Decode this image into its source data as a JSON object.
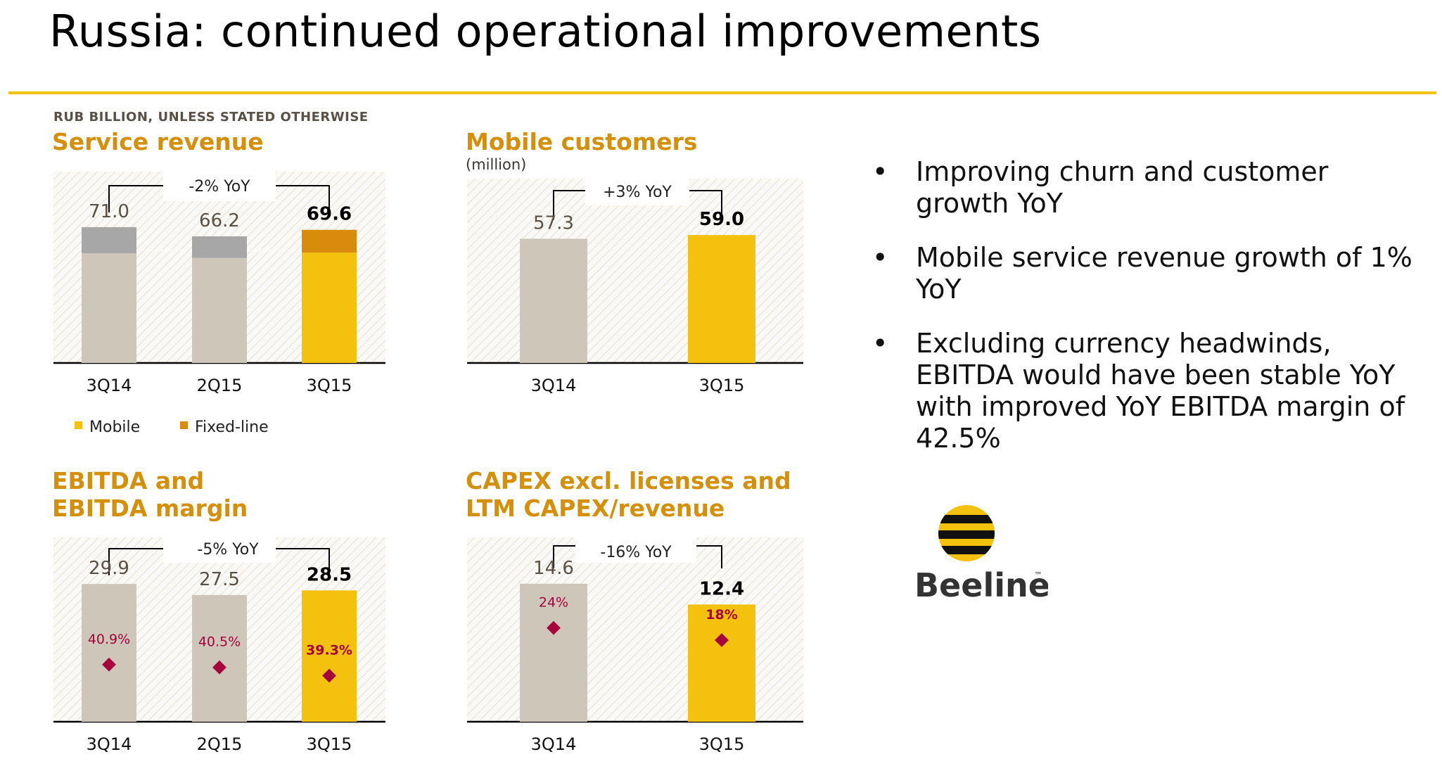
{
  "slide": {
    "title": "Russia: continued operational improvements",
    "units_note": "RUB BILLION, UNLESS STATED OTHERWISE"
  },
  "colors": {
    "accent": "#f4c10e",
    "title_orange": "#d4900a",
    "gray_bar": "#cdc6b9",
    "dark_gray_bar": "#a7a7a7",
    "fixed_line": "#d98b0c",
    "margin_marker": "#a5043c"
  },
  "panels": {
    "service_revenue": {
      "title": "Service revenue",
      "yoy": "-2% YoY"
    },
    "mobile_customers": {
      "title": "Mobile customers",
      "subtitle": "(million)",
      "yoy": "+3% YoY"
    },
    "ebitda": {
      "title_line1": "EBITDA and",
      "title_line2": "EBITDA margin",
      "yoy": "-5% YoY"
    },
    "capex": {
      "title_line1": "CAPEX excl. licenses and",
      "title_line2": "LTM CAPEX/revenue",
      "yoy": "-16% YoY"
    }
  },
  "legend": {
    "mobile": "Mobile",
    "fixed_line": "Fixed-line"
  },
  "chart_data": [
    {
      "id": "service_revenue",
      "type": "bar",
      "stacked": true,
      "categories": [
        "3Q14",
        "2Q15",
        "3Q15"
      ],
      "totals": [
        71.0,
        66.2,
        69.6
      ],
      "total_labels": [
        "71.0",
        "66.2",
        "69.6"
      ],
      "series": [
        {
          "name": "Mobile",
          "values": [
            57.3,
            54.9,
            57.7
          ]
        },
        {
          "name": "Fixed-line",
          "values": [
            13.7,
            11.3,
            11.9
          ]
        }
      ],
      "ylim": [
        0,
        100
      ],
      "highlight": "3Q15"
    },
    {
      "id": "mobile_customers",
      "type": "bar",
      "categories": [
        "3Q14",
        "3Q15"
      ],
      "values": [
        57.3,
        59.0
      ],
      "value_labels": [
        "57.3",
        "59.0"
      ],
      "ylim": [
        0,
        85
      ],
      "highlight": "3Q15"
    },
    {
      "id": "ebitda",
      "type": "bar",
      "categories": [
        "3Q14",
        "2Q15",
        "3Q15"
      ],
      "values": [
        29.9,
        27.5,
        28.5
      ],
      "value_labels": [
        "29.9",
        "27.5",
        "28.5"
      ],
      "margin_values": [
        40.9,
        40.5,
        39.3
      ],
      "margin_labels": [
        "40.9%",
        "40.5%",
        "39.3%"
      ],
      "ylim": [
        0,
        40
      ],
      "highlight": "3Q15"
    },
    {
      "id": "capex",
      "type": "bar",
      "categories": [
        "3Q14",
        "3Q15"
      ],
      "values": [
        14.6,
        12.4
      ],
      "value_labels": [
        "14.6",
        "12.4"
      ],
      "margin_values": [
        24,
        18
      ],
      "margin_labels": [
        "24%",
        "18%"
      ],
      "ylim": [
        0,
        19.5
      ],
      "highlight": "3Q15"
    }
  ],
  "bullets": [
    "Improving churn and customer growth YoY",
    "Mobile service revenue growth of 1% YoY",
    "Excluding currency headwinds, EBITDA would have been stable YoY with improved YoY EBITDA margin of 42.5%"
  ],
  "logo": {
    "text": "Beeline",
    "tm": "™"
  }
}
